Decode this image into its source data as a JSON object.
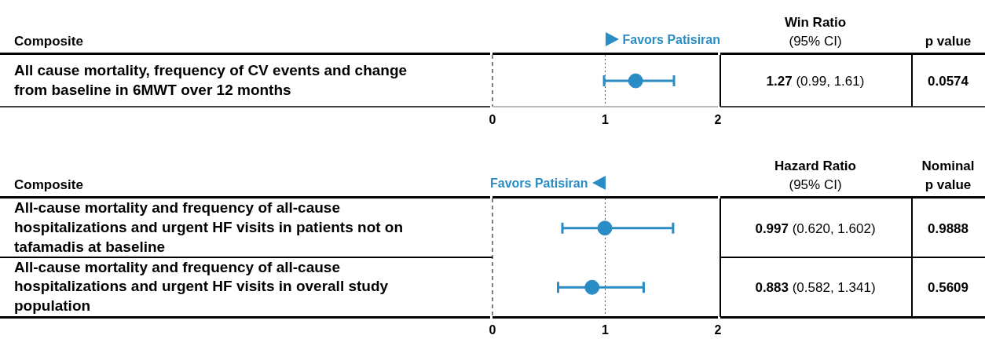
{
  "chart_data": [
    {
      "type": "scatter",
      "orientation": "horizontal",
      "ylabel": "Composite",
      "categories": [
        "All cause mortality, frequency of CV events and change from baseline in 6MWT over 12 months"
      ],
      "values": [
        1.27
      ],
      "errors": [
        [
          0.99,
          1.61
        ]
      ],
      "color": "#2a8cc4",
      "marker": "circle",
      "xlim": [
        0,
        2
      ],
      "xticks": [
        0,
        1,
        2
      ],
      "ref_lines": [
        {
          "axis": "x",
          "value": 0,
          "line_style": "dashed",
          "color": "#000000"
        },
        {
          "axis": "x",
          "value": 1,
          "line_style": "dotted",
          "color": "#555555"
        }
      ],
      "annotations": [
        "Favors Patisiran",
        "Win Ratio\n(95% CI)",
        "p value",
        "1.27 (0.99, 1.61)",
        "0.0574"
      ]
    },
    {
      "type": "scatter",
      "orientation": "horizontal",
      "ylabel": "Composite",
      "categories": [
        "All-cause mortality and frequency of all-cause hospitalizations and urgent HF visits in patients not on tafamadis at baseline",
        "All-cause mortality and frequency of all-cause hospitalizations and urgent HF visits in overall study population"
      ],
      "values": [
        0.997,
        0.883
      ],
      "errors": [
        [
          0.62,
          1.602
        ],
        [
          0.582,
          1.341
        ]
      ],
      "color": "#2a8cc4",
      "marker": "circle",
      "xlim": [
        0,
        2
      ],
      "xticks": [
        0,
        1,
        2
      ],
      "ref_lines": [
        {
          "axis": "x",
          "value": 0,
          "line_style": "dashed",
          "color": "#000000"
        },
        {
          "axis": "x",
          "value": 1,
          "line_style": "dotted",
          "color": "#555555"
        }
      ],
      "annotations": [
        "Favors Patisiran",
        "Hazard Ratio\n(95% CI)",
        "Nominal\np value",
        "0.997 (0.620, 1.602)",
        "0.9888",
        "0.883 (0.582, 1.341)",
        "0.5609"
      ]
    }
  ]
}
